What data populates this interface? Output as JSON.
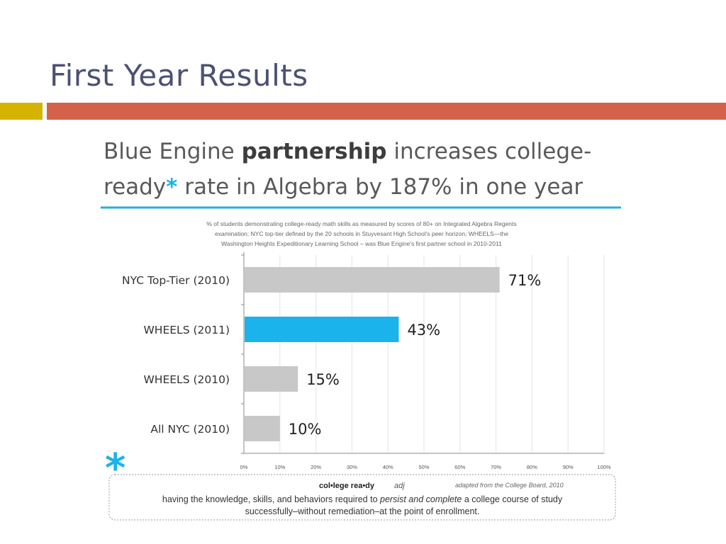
{
  "slide": {
    "title": "First Year Results"
  },
  "colors": {
    "title": "#4a5173",
    "accent_yellow": "#d4b400",
    "accent_orange": "#d4614a",
    "bar_gray": "#c8c8c8",
    "bar_highlight": "#1ab3ec",
    "underline": "#29abe2"
  },
  "chart_data": {
    "type": "bar",
    "orientation": "horizontal",
    "title": {
      "line1_pre": "Blue Engine ",
      "line1_bold": "partnership",
      "line1_post": " increases college-",
      "line2_pre": "ready",
      "line2_star": "*",
      "line2_post": " rate in Algebra by 187% in one year"
    },
    "subtitle": [
      "% of students demonstrating college-ready math skills as measured by scores of 80+ on  Integrated Algebra Regents",
      "examination; NYC top-tier defined by the 20 schools in Stuyvesant High School's peer horizon; WHEELS—the",
      "Washington Heights Expeditionary Learning School – was Blue Engine's first partner school in 2010-2011"
    ],
    "categories": [
      "NYC Top-Tier (2010)",
      "WHEELS (2011)",
      "WHEELS (2010)",
      "All NYC (2010)"
    ],
    "values": [
      71,
      43,
      15,
      10
    ],
    "value_labels": [
      "71%",
      "43%",
      "15%",
      "10%"
    ],
    "highlight": [
      false,
      true,
      false,
      false
    ],
    "xlim": [
      0,
      100
    ],
    "xticks": [
      0,
      10,
      20,
      30,
      40,
      50,
      60,
      70,
      80,
      90,
      100
    ],
    "xtick_labels": [
      "0%",
      "10%",
      "20%",
      "30%",
      "40%",
      "50%",
      "60%",
      "70%",
      "80%",
      "90%",
      "100%"
    ],
    "grid": true,
    "definition": {
      "star": "*",
      "term": "col•lege rea•dy",
      "pos": "adj",
      "source": "adapted from the College Board, 2010",
      "line1_pre": "having the knowledge, skills, and behaviors required to ",
      "line1_em": "persist and complete",
      "line1_post": " a college course of study",
      "line2": "successfully–without remediation–at the point of enrollment."
    }
  }
}
